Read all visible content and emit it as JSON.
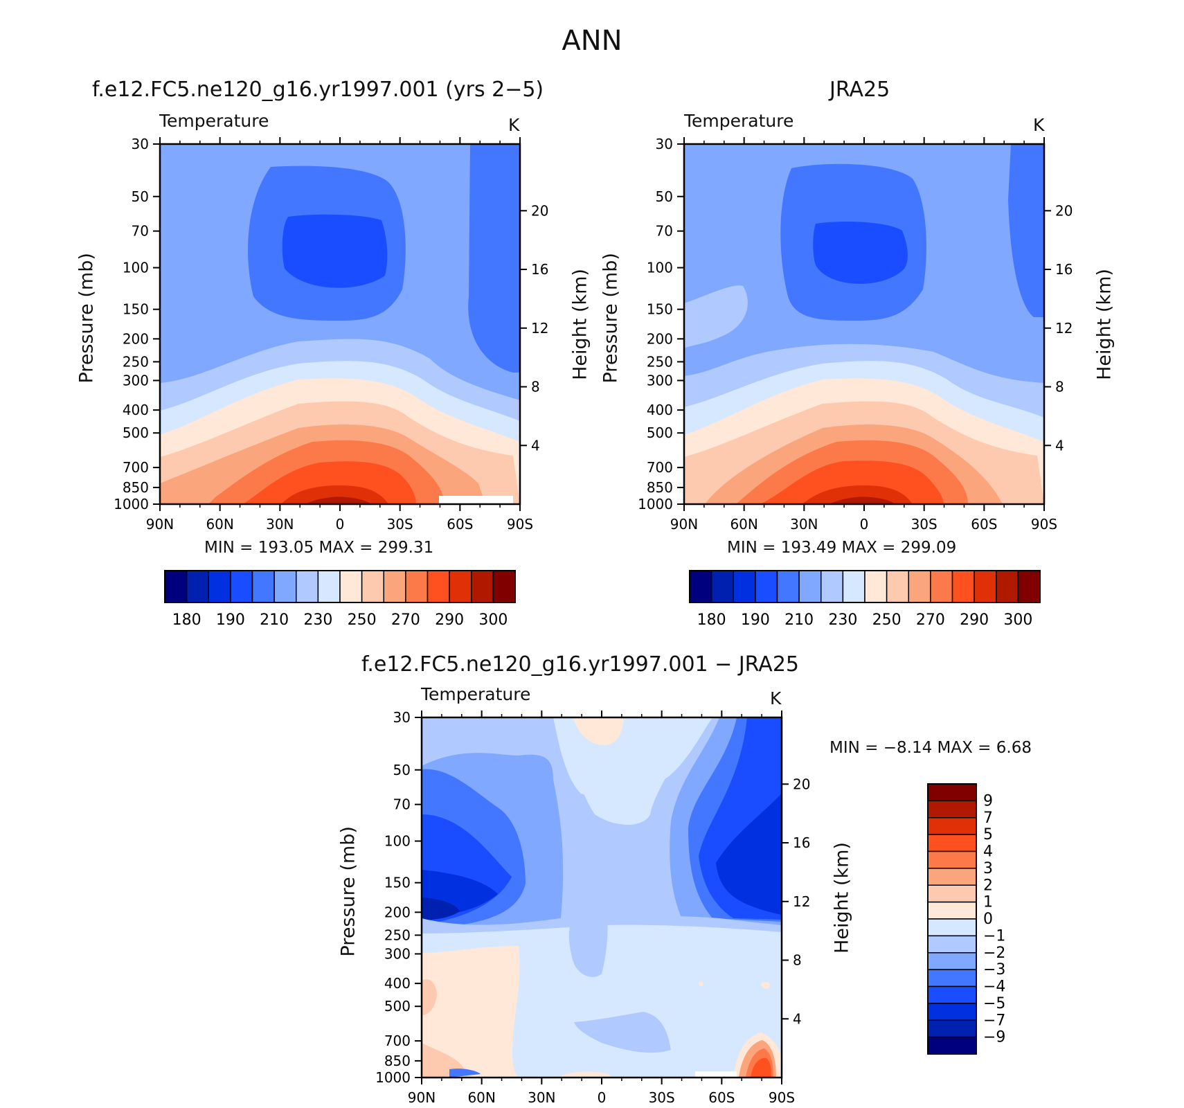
{
  "main_title": "ANN",
  "panels": [
    {
      "title": "f.e12.FC5.ne120_g16.yr1997.001 (yrs 2−5)",
      "variable": "Temperature",
      "unit": "K",
      "min_max": "MIN =  193.05   MAX =  299.31"
    },
    {
      "title": "JRA25",
      "variable": "Temperature",
      "unit": "K",
      "min_max": "MIN =  193.49   MAX =  299.09"
    },
    {
      "title": "f.e12.FC5.ne120_g16.yr1997.001 − JRA25",
      "variable": "Temperature",
      "unit": "K",
      "min_max": "MIN =    −8.14    MAX =     6.68"
    }
  ],
  "axes": {
    "ylabel": "Pressure (mb)",
    "ylabel_right": "Height (km)",
    "pressure_ticks": [
      "30",
      "50",
      "70",
      "100",
      "150",
      "200",
      "250",
      "300",
      "400",
      "500",
      "700",
      "850",
      "1000"
    ],
    "height_ticks": [
      "20",
      "16",
      "12",
      "8",
      "4"
    ],
    "lat_ticks": [
      "90N",
      "60N",
      "30N",
      "0",
      "30S",
      "60S",
      "90S"
    ]
  },
  "colorbar_abs": {
    "colors": [
      "#00007f",
      "#0020b0",
      "#0030e0",
      "#1a4dff",
      "#4477ff",
      "#80a8ff",
      "#b0caff",
      "#d6e8ff",
      "#ffe8d8",
      "#fdcab0",
      "#fba57d",
      "#fc7a4a",
      "#ff5020",
      "#e03008",
      "#b01800",
      "#800000"
    ],
    "labels": [
      "180",
      "190",
      "210",
      "230",
      "250",
      "270",
      "290",
      "300"
    ]
  },
  "colorbar_diff": {
    "colors": [
      "#800000",
      "#b01800",
      "#e03008",
      "#ff5020",
      "#fc7a4a",
      "#fba57d",
      "#fdcab0",
      "#ffe8d8",
      "#d6e8ff",
      "#b0caff",
      "#80a8ff",
      "#4477ff",
      "#1a4dff",
      "#0030e0",
      "#0020b0",
      "#00007f"
    ],
    "labels": [
      "9",
      "7",
      "5",
      "4",
      "3",
      "2",
      "1",
      "0",
      "−1",
      "−2",
      "−3",
      "−4",
      "−5",
      "−7",
      "−9"
    ]
  },
  "chart_data": [
    {
      "type": "heatmap",
      "title": "f.e12.FC5.ne120_g16.yr1997.001 (yrs 2−5)",
      "variable": "Temperature",
      "unit": "K",
      "xlabel": "",
      "ylabel": "Pressure (mb)",
      "ylabel_right": "Height (km)",
      "x_ticks": [
        "90N",
        "60N",
        "30N",
        "0",
        "30S",
        "60S",
        "90S"
      ],
      "y_ticks": [
        30,
        50,
        70,
        100,
        150,
        200,
        250,
        300,
        400,
        500,
        700,
        850,
        1000
      ],
      "y_scale": "log",
      "y_inverted": true,
      "min": 193.05,
      "max": 299.31,
      "contour_levels": [
        180,
        185,
        190,
        200,
        210,
        220,
        230,
        240,
        250,
        260,
        270,
        280,
        290,
        295,
        300
      ],
      "colorbar_labels": [
        180,
        190,
        210,
        230,
        250,
        270,
        290,
        300
      ],
      "colorbar_orientation": "horizontal"
    },
    {
      "type": "heatmap",
      "title": "JRA25",
      "variable": "Temperature",
      "unit": "K",
      "xlabel": "",
      "ylabel": "Pressure (mb)",
      "ylabel_right": "Height (km)",
      "x_ticks": [
        "90N",
        "60N",
        "30N",
        "0",
        "30S",
        "60S",
        "90S"
      ],
      "y_ticks": [
        30,
        50,
        70,
        100,
        150,
        200,
        250,
        300,
        400,
        500,
        700,
        850,
        1000
      ],
      "y_scale": "log",
      "y_inverted": true,
      "min": 193.49,
      "max": 299.09,
      "contour_levels": [
        180,
        185,
        190,
        200,
        210,
        220,
        230,
        240,
        250,
        260,
        270,
        280,
        290,
        295,
        300
      ],
      "colorbar_labels": [
        180,
        190,
        210,
        230,
        250,
        270,
        290,
        300
      ],
      "colorbar_orientation": "horizontal"
    },
    {
      "type": "heatmap",
      "title": "f.e12.FC5.ne120_g16.yr1997.001 − JRA25",
      "variable": "Temperature",
      "unit": "K",
      "xlabel": "",
      "ylabel": "Pressure (mb)",
      "ylabel_right": "Height (km)",
      "x_ticks": [
        "90N",
        "60N",
        "30N",
        "0",
        "30S",
        "60S",
        "90S"
      ],
      "y_ticks": [
        30,
        50,
        70,
        100,
        150,
        200,
        250,
        300,
        400,
        500,
        700,
        850,
        1000
      ],
      "y_scale": "log",
      "y_inverted": true,
      "min": -8.14,
      "max": 6.68,
      "contour_levels": [
        -9,
        -7,
        -5,
        -4,
        -3,
        -2,
        -1,
        0,
        1,
        2,
        3,
        4,
        5,
        7,
        9
      ],
      "colorbar_labels": [
        9,
        7,
        5,
        4,
        3,
        2,
        1,
        0,
        -1,
        -2,
        -3,
        -4,
        -5,
        -7,
        -9
      ],
      "colorbar_orientation": "vertical"
    }
  ]
}
